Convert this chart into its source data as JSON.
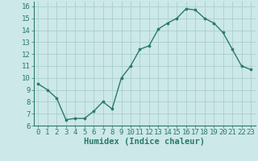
{
  "x": [
    0,
    1,
    2,
    3,
    4,
    5,
    6,
    7,
    8,
    9,
    10,
    11,
    12,
    13,
    14,
    15,
    16,
    17,
    18,
    19,
    20,
    21,
    22,
    23
  ],
  "y": [
    9.5,
    9.0,
    8.3,
    6.5,
    6.6,
    6.6,
    7.2,
    8.0,
    7.4,
    10.0,
    11.0,
    12.4,
    12.7,
    14.1,
    14.6,
    15.0,
    15.8,
    15.7,
    15.0,
    14.6,
    13.8,
    12.4,
    11.0,
    10.7
  ],
  "xlabel": "Humidex (Indice chaleur)",
  "ylim": [
    6,
    16.4
  ],
  "xlim": [
    -0.5,
    23.5
  ],
  "yticks": [
    6,
    7,
    8,
    9,
    10,
    11,
    12,
    13,
    14,
    15,
    16
  ],
  "xticks": [
    0,
    1,
    2,
    3,
    4,
    5,
    6,
    7,
    8,
    9,
    10,
    11,
    12,
    13,
    14,
    15,
    16,
    17,
    18,
    19,
    20,
    21,
    22,
    23
  ],
  "line_color": "#2a7a6a",
  "marker_color": "#2a7a6a",
  "bg_color": "#cce8e8",
  "grid_color": "#aacece",
  "tick_color": "#2a7a6a",
  "xlabel_fontsize": 7.5,
  "tick_fontsize": 6.5
}
